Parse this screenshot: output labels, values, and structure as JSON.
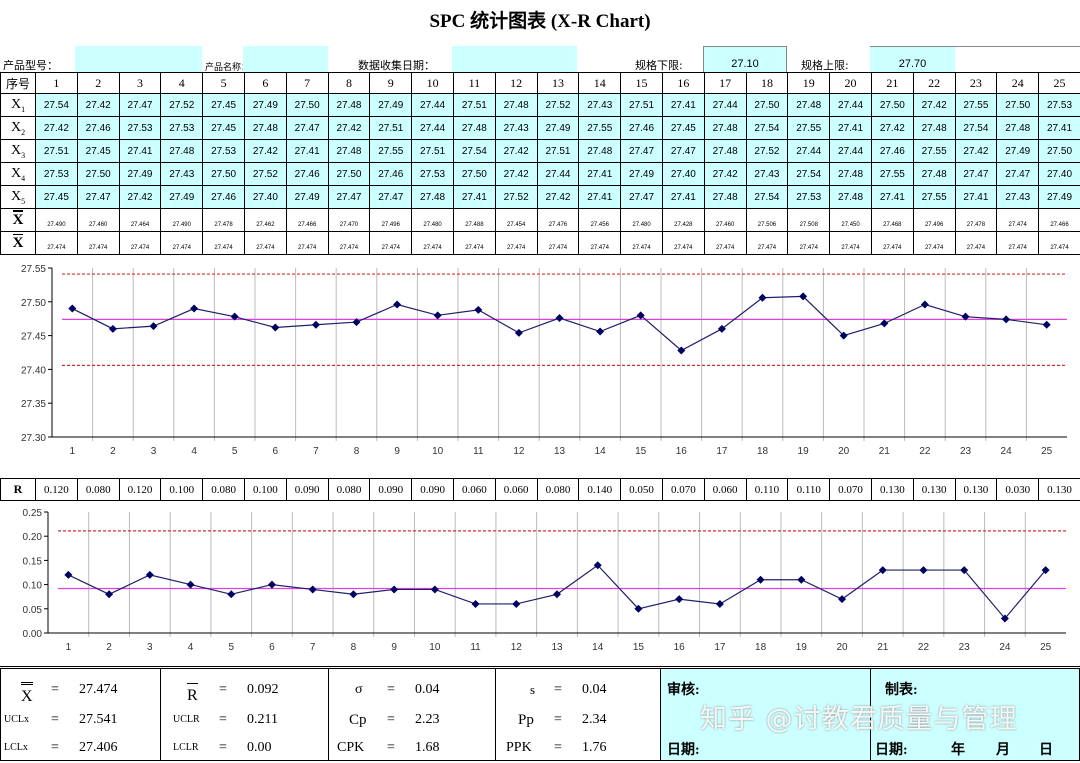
{
  "title": "SPC 统计图表 (X-R Chart)",
  "header": {
    "product_model_label": "产品型号：",
    "product_model_value": "",
    "product_name_label": "产品名称：",
    "product_name_value": "",
    "collect_date_label": "数据收集日期：",
    "collect_date_value": "",
    "lsl_label": "规格下限:",
    "lsl_value": "27.10",
    "usl_label": "规格上限:",
    "usl_value": "27.70"
  },
  "table": {
    "index_label": "序号",
    "subgroups": [
      "1",
      "2",
      "3",
      "4",
      "5",
      "6",
      "7",
      "8",
      "9",
      "10",
      "11",
      "12",
      "13",
      "14",
      "15",
      "16",
      "17",
      "18",
      "19",
      "20",
      "21",
      "22",
      "23",
      "24",
      "25"
    ],
    "rows": [
      {
        "label": "X",
        "sub": "1",
        "values": [
          "27.54",
          "27.42",
          "27.47",
          "27.52",
          "27.45",
          "27.49",
          "27.50",
          "27.48",
          "27.49",
          "27.44",
          "27.51",
          "27.48",
          "27.52",
          "27.43",
          "27.51",
          "27.41",
          "27.44",
          "27.50",
          "27.48",
          "27.44",
          "27.50",
          "27.42",
          "27.55",
          "27.50",
          "27.53"
        ]
      },
      {
        "label": "X",
        "sub": "2",
        "values": [
          "27.42",
          "27.46",
          "27.53",
          "27.53",
          "27.45",
          "27.48",
          "27.47",
          "27.42",
          "27.51",
          "27.44",
          "27.48",
          "27.43",
          "27.49",
          "27.55",
          "27.46",
          "27.45",
          "27.48",
          "27.54",
          "27.55",
          "27.41",
          "27.42",
          "27.48",
          "27.54",
          "27.48",
          "27.41"
        ]
      },
      {
        "label": "X",
        "sub": "3",
        "values": [
          "27.51",
          "27.45",
          "27.41",
          "27.48",
          "27.53",
          "27.42",
          "27.41",
          "27.48",
          "27.55",
          "27.51",
          "27.54",
          "27.42",
          "27.51",
          "27.48",
          "27.47",
          "27.47",
          "27.48",
          "27.52",
          "27.44",
          "27.44",
          "27.46",
          "27.55",
          "27.42",
          "27.49",
          "27.50"
        ]
      },
      {
        "label": "X",
        "sub": "4",
        "values": [
          "27.53",
          "27.50",
          "27.49",
          "27.43",
          "27.50",
          "27.52",
          "27.46",
          "27.50",
          "27.46",
          "27.53",
          "27.50",
          "27.42",
          "27.44",
          "27.41",
          "27.49",
          "27.40",
          "27.42",
          "27.43",
          "27.54",
          "27.48",
          "27.55",
          "27.48",
          "27.47",
          "27.47",
          "27.40"
        ]
      },
      {
        "label": "X",
        "sub": "5",
        "values": [
          "27.45",
          "27.47",
          "27.42",
          "27.49",
          "27.46",
          "27.40",
          "27.49",
          "27.47",
          "27.47",
          "27.48",
          "27.41",
          "27.52",
          "27.42",
          "27.41",
          "27.47",
          "27.41",
          "27.48",
          "27.54",
          "27.53",
          "27.48",
          "27.41",
          "27.55",
          "27.41",
          "27.43",
          "27.49"
        ]
      }
    ],
    "xbar_label": "X",
    "xbar": [
      "27.490",
      "27.460",
      "27.464",
      "27.490",
      "27.478",
      "27.462",
      "27.466",
      "27.470",
      "27.496",
      "27.480",
      "27.488",
      "27.454",
      "27.476",
      "27.456",
      "27.480",
      "27.428",
      "27.460",
      "27.506",
      "27.508",
      "27.450",
      "27.468",
      "27.496",
      "27.478",
      "27.474",
      "27.466"
    ],
    "xdbar_label": "X",
    "xdbar": [
      "27.474",
      "27.474",
      "27.474",
      "27.474",
      "27.474",
      "27.474",
      "27.474",
      "27.474",
      "27.474",
      "27.474",
      "27.474",
      "27.474",
      "27.474",
      "27.474",
      "27.474",
      "27.474",
      "27.474",
      "27.474",
      "27.474",
      "27.474",
      "27.474",
      "27.474",
      "27.474",
      "27.474",
      "27.474"
    ],
    "r_label": "R",
    "r": [
      "0.120",
      "0.080",
      "0.120",
      "0.100",
      "0.080",
      "0.100",
      "0.090",
      "0.080",
      "0.090",
      "0.090",
      "0.060",
      "0.060",
      "0.080",
      "0.140",
      "0.050",
      "0.070",
      "0.060",
      "0.110",
      "0.110",
      "0.070",
      "0.130",
      "0.130",
      "0.130",
      "0.030",
      "0.130"
    ]
  },
  "chart_data": [
    {
      "type": "line",
      "x": [
        1,
        2,
        3,
        4,
        5,
        6,
        7,
        8,
        9,
        10,
        11,
        12,
        13,
        14,
        15,
        16,
        17,
        18,
        19,
        20,
        21,
        22,
        23,
        24,
        25
      ],
      "values": [
        27.49,
        27.46,
        27.464,
        27.49,
        27.478,
        27.462,
        27.466,
        27.47,
        27.496,
        27.48,
        27.488,
        27.454,
        27.476,
        27.456,
        27.48,
        27.428,
        27.46,
        27.506,
        27.508,
        27.45,
        27.468,
        27.496,
        27.478,
        27.474,
        27.466
      ],
      "ylim": [
        27.3,
        27.55
      ],
      "yticks": [
        "27.30",
        "27.35",
        "27.40",
        "27.45",
        "27.50",
        "27.55"
      ],
      "ucl": 27.541,
      "cl": 27.474,
      "lcl": 27.406,
      "grid": "vertical",
      "colors": {
        "series": "#1f1f6e",
        "cl": "#e040e0",
        "limits": "#d03030"
      }
    },
    {
      "type": "line",
      "x": [
        1,
        2,
        3,
        4,
        5,
        6,
        7,
        8,
        9,
        10,
        11,
        12,
        13,
        14,
        15,
        16,
        17,
        18,
        19,
        20,
        21,
        22,
        23,
        24,
        25
      ],
      "values": [
        0.12,
        0.08,
        0.12,
        0.1,
        0.08,
        0.1,
        0.09,
        0.08,
        0.09,
        0.09,
        0.06,
        0.06,
        0.08,
        0.14,
        0.05,
        0.07,
        0.06,
        0.11,
        0.11,
        0.07,
        0.13,
        0.13,
        0.13,
        0.03,
        0.13
      ],
      "ylim": [
        0,
        0.25
      ],
      "yticks": [
        "0.00",
        "0.05",
        "0.10",
        "0.15",
        "0.20",
        "0.25"
      ],
      "ucl": 0.211,
      "cl": 0.092,
      "grid": "vertical",
      "colors": {
        "series": "#1f1f6e",
        "cl": "#e040e0",
        "limits": "#d03030"
      }
    }
  ],
  "stats": {
    "xdbar": {
      "label": "X",
      "eq": "=",
      "value": "27.474"
    },
    "uclx": {
      "label": "UCLx",
      "eq": "=",
      "value": "27.541"
    },
    "lclx": {
      "label": "LCLx",
      "eq": "=",
      "value": "27.406"
    },
    "rbar": {
      "label": "R",
      "eq": "=",
      "value": "0.092"
    },
    "uclr": {
      "label": "UCLR",
      "eq": "=",
      "value": "0.211"
    },
    "lclr": {
      "label": "LCLR",
      "eq": "=",
      "value": "0.00"
    },
    "sigma": {
      "label": "σ",
      "eq": "=",
      "value": "0.04"
    },
    "cp": {
      "label": "Cp",
      "eq": "=",
      "value": "2.23"
    },
    "cpk": {
      "label": "CPK",
      "eq": "=",
      "value": "1.68"
    },
    "s": {
      "label": "s",
      "eq": "=",
      "value": "0.04"
    },
    "pp": {
      "label": "Pp",
      "eq": "=",
      "value": "2.34"
    },
    "ppk": {
      "label": "PPK",
      "eq": "=",
      "value": "1.76"
    }
  },
  "signoff": {
    "review_label": "审核:",
    "review_date_label": "日期:",
    "maker_label": "制表:",
    "maker_date_label": "日期:",
    "year": "年",
    "month": "月",
    "day": "日"
  },
  "watermark": "知乎 @讨教君质量与管理"
}
